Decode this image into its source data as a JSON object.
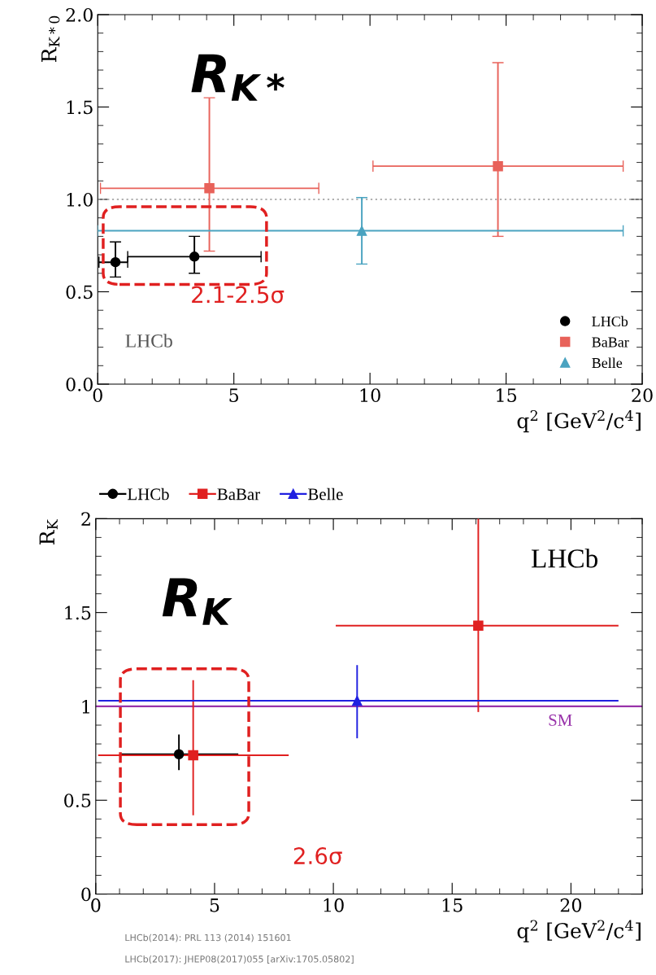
{
  "chart_data": [
    {
      "type": "scatter",
      "ylabel": "R$_{K*0}$",
      "xlabel": "q$^{2}$ [GeV$^{2}$/c$^{4}$]",
      "annotations": [
        "R$_{K*}$",
        "2.1-2.5σ",
        "LHCb"
      ],
      "xlim": [
        0,
        20
      ],
      "xticks": [
        0,
        5,
        10,
        15,
        20
      ],
      "ylim": [
        0,
        2
      ],
      "yticks": [
        {
          "value": 0,
          "label": "0.0"
        },
        {
          "value": 0.5,
          "label": "0.5"
        },
        {
          "value": 1,
          "label": "1.0"
        },
        {
          "value": 1.5,
          "label": "1.5"
        },
        {
          "value": 2,
          "label": "2.0"
        }
      ],
      "legend": "bottom right",
      "grid": false,
      "ref_lines": [
        {
          "axis": "y",
          "value": 1,
          "color": "#b0b0b0",
          "line_style": "dotted"
        }
      ],
      "series": [
        {
          "name": "LHCb",
          "color": "#000000",
          "marker": "circle",
          "x": [
            0.65,
            3.55
          ],
          "values": [
            0.66,
            0.69
          ],
          "xerrors": [
            [
              0.045,
              1.1
            ],
            [
              1.1,
              6.0
            ]
          ],
          "errors": [
            [
              0.58,
              0.77
            ],
            [
              0.6,
              0.8
            ]
          ]
        },
        {
          "name": "BaBar",
          "color": "#e8625a",
          "marker": "square",
          "x": [
            4.1,
            14.7
          ],
          "values": [
            1.06,
            1.18
          ],
          "xerrors": [
            [
              0.1,
              8.12
            ],
            [
              10.11,
              19.3
            ]
          ],
          "errors": [
            [
              0.72,
              1.55
            ],
            [
              0.8,
              1.74
            ]
          ]
        },
        {
          "name": "Belle",
          "color": "#4aa3c0",
          "marker": "triangle",
          "x": [
            9.7
          ],
          "values": [
            0.83
          ],
          "xerrors": [
            [
              0.0,
              19.3
            ]
          ],
          "errors": [
            [
              0.65,
              1.01
            ]
          ]
        }
      ]
    },
    {
      "type": "scatter",
      "ylabel": "R$_{K}$",
      "xlabel": "q$^{2}$ [GeV$^{2}$/c$^{4}$]",
      "annotations": [
        "R$_{K}$",
        "2.6σ",
        "LHCb",
        "LHCb(2014): PRL 113 (2014) 151601",
        "LHCb(2017): JHEP08(2017)055 [arXiv:1705.05802]"
      ],
      "xlim": [
        0,
        23
      ],
      "xticks": [
        0,
        5,
        10,
        15,
        20
      ],
      "ylim": [
        0,
        2
      ],
      "yticks": [
        0,
        0.5,
        1,
        1.5,
        2
      ],
      "legend": "top",
      "grid": false,
      "ref_lines": [
        {
          "axis": "y",
          "value": 1,
          "label": "SM",
          "color": "#9933aa",
          "line_style": "solid"
        }
      ],
      "series": [
        {
          "name": "LHCb",
          "color": "#000000",
          "marker": "circle",
          "x": [
            3.5
          ],
          "values": [
            0.745
          ],
          "xerrors": [
            [
              1.0,
              6.0
            ]
          ],
          "errors": [
            [
              0.66,
              0.85
            ]
          ]
        },
        {
          "name": "BaBar",
          "color": "#e02020",
          "marker": "square",
          "x": [
            4.1,
            16.1
          ],
          "values": [
            0.74,
            1.43
          ],
          "xerrors": [
            [
              0.1,
              8.12
            ],
            [
              10.1,
              22.0
            ]
          ],
          "errors": [
            [
              0.42,
              1.14
            ],
            [
              0.97,
              2.0
            ]
          ]
        },
        {
          "name": "Belle",
          "color": "#2020e0",
          "marker": "triangle",
          "x": [
            11.0
          ],
          "values": [
            1.03
          ],
          "xerrors": [
            [
              0.1,
              22.0
            ]
          ],
          "errors": [
            [
              0.83,
              1.22
            ]
          ]
        }
      ]
    }
  ]
}
